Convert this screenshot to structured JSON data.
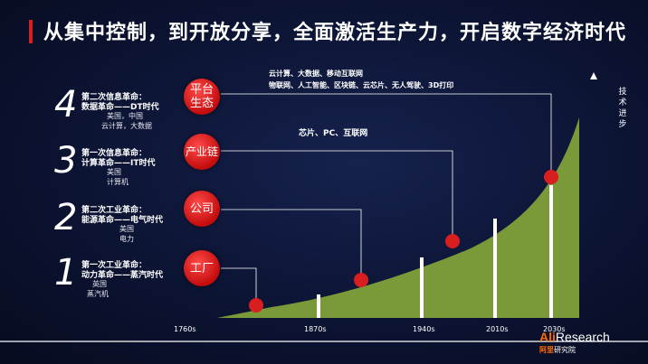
{
  "title": "从集中控制，到开放分享，全面激活生产力，开启数字经济时代",
  "accent_color": "#d81e1e",
  "curve_color": "#7a9a3a",
  "vertical_label": "技术进步",
  "axis_ticks": [
    "1760s",
    "1870s",
    "1940s",
    "2010s",
    "2030s"
  ],
  "eras": [
    {
      "num": "4",
      "line1": "第二次信息革命：",
      "line2": "数据革命——DT时代",
      "sub1": "美国，中国",
      "sub2": "云计算，大数据"
    },
    {
      "num": "3",
      "line1": "第一次信息革命：",
      "line2": "计算革命——IT时代",
      "sub1": "美国",
      "sub2": "计算机"
    },
    {
      "num": "2",
      "line1": "第二次工业革命：",
      "line2": "能源革命——电气时代",
      "sub1": "美国",
      "sub2": "电力"
    },
    {
      "num": "1",
      "line1": "第一次工业革命：",
      "line2": "动力革命——蒸汽时代",
      "sub1": "英国",
      "sub2": "蒸汽机"
    }
  ],
  "stages": [
    "平台生态",
    "产业链",
    "公司",
    "工厂"
  ],
  "tech_labels": {
    "dt_line1": "云计算、大数据、移动互联网",
    "dt_line2": "物联网、人工智能、区块链、云芯片、无人驾驶、3D打印",
    "it_line": "芯片、PC、互联网"
  },
  "logo": {
    "ali": "Ali",
    "research": "Research",
    "cn_accent": "阿里",
    "cn": "研究院"
  }
}
